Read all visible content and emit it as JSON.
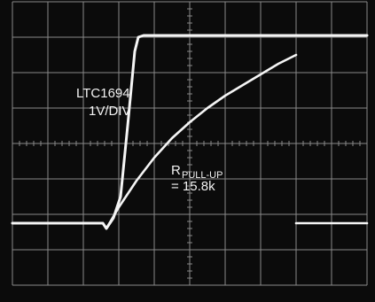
{
  "chart_data": {
    "type": "line",
    "title": "",
    "xlabel": "",
    "ylabel": "",
    "grid": true,
    "divisions": {
      "x": 10,
      "y": 8
    },
    "xlim": [
      0,
      10
    ],
    "ylim": [
      -4,
      4
    ],
    "series": [
      {
        "name": "LTC1694 1V/DIV",
        "points": [
          [
            0,
            -2.25
          ],
          [
            2.55,
            -2.25
          ],
          [
            2.65,
            -2.4
          ],
          [
            2.85,
            -2.1
          ],
          [
            3.05,
            -1.5
          ],
          [
            3.25,
            0.5
          ],
          [
            3.45,
            2.6
          ],
          [
            3.55,
            3.0
          ],
          [
            3.7,
            3.05
          ],
          [
            10,
            3.05
          ]
        ]
      },
      {
        "name": "R PULL-UP = 15.8k",
        "points": [
          [
            2.55,
            -2.25
          ],
          [
            2.65,
            -2.4
          ],
          [
            3.0,
            -1.8
          ],
          [
            3.5,
            -1.05
          ],
          [
            4.0,
            -0.4
          ],
          [
            4.5,
            0.15
          ],
          [
            5.0,
            0.6
          ],
          [
            5.5,
            1.0
          ],
          [
            6.0,
            1.35
          ],
          [
            6.5,
            1.65
          ],
          [
            7.0,
            1.95
          ],
          [
            7.5,
            2.25
          ],
          [
            8.0,
            2.5
          ]
        ]
      },
      {
        "name": "",
        "points": [
          [
            8.0,
            -2.25
          ],
          [
            10,
            -2.25
          ]
        ]
      }
    ],
    "annotations": {
      "series_label_line1": "LTC1694",
      "series_label_line2": "1V/DIV",
      "pullup_R": "R",
      "pullup_sub": "PULL-UP",
      "pullup_value": "= 15.8k"
    }
  },
  "colors": {
    "screen": "#0b0b0b",
    "grid": "#8a8a8a",
    "trace": "#f5f5f5"
  }
}
